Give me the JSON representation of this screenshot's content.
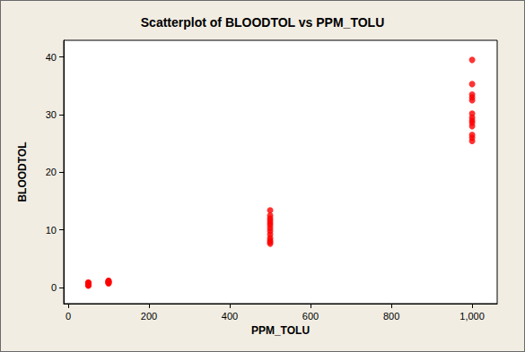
{
  "chart_data": {
    "type": "scatter",
    "title": "Scatterplot of BLOODTOL vs PPM_TOLU",
    "x_label": "PPM_TOLU",
    "y_label": "BLOODTOL",
    "x": [
      50,
      50,
      50,
      50,
      50,
      50,
      50,
      100,
      100,
      100,
      100,
      100,
      100,
      500,
      500,
      500,
      500,
      500,
      500,
      500,
      500,
      500,
      500,
      500,
      500,
      500,
      1000,
      1000,
      1000,
      1000,
      1000,
      1000,
      1000,
      1000,
      1000,
      1000,
      1000,
      1000,
      1000
    ],
    "values": [
      0.3,
      0.4,
      0.5,
      0.6,
      0.7,
      0.8,
      0.9,
      0.7,
      0.8,
      0.9,
      1.0,
      1.1,
      1.2,
      7.6,
      7.9,
      8.2,
      8.6,
      9.2,
      9.8,
      10.3,
      10.8,
      11.2,
      11.6,
      12.0,
      12.5,
      13.4,
      25.4,
      26.0,
      26.5,
      28.0,
      28.6,
      29.0,
      29.5,
      30.2,
      32.5,
      33.0,
      33.5,
      35.3,
      39.5
    ],
    "color": "#ff0000",
    "marker": "circle",
    "xlim": [
      -11,
      1062
    ],
    "xticks": [
      0,
      200,
      400,
      600,
      800,
      1000
    ],
    "ylim": [
      -2.8,
      42.9
    ],
    "yticks": [
      0,
      10,
      20,
      30,
      40
    ],
    "grid": false
  }
}
